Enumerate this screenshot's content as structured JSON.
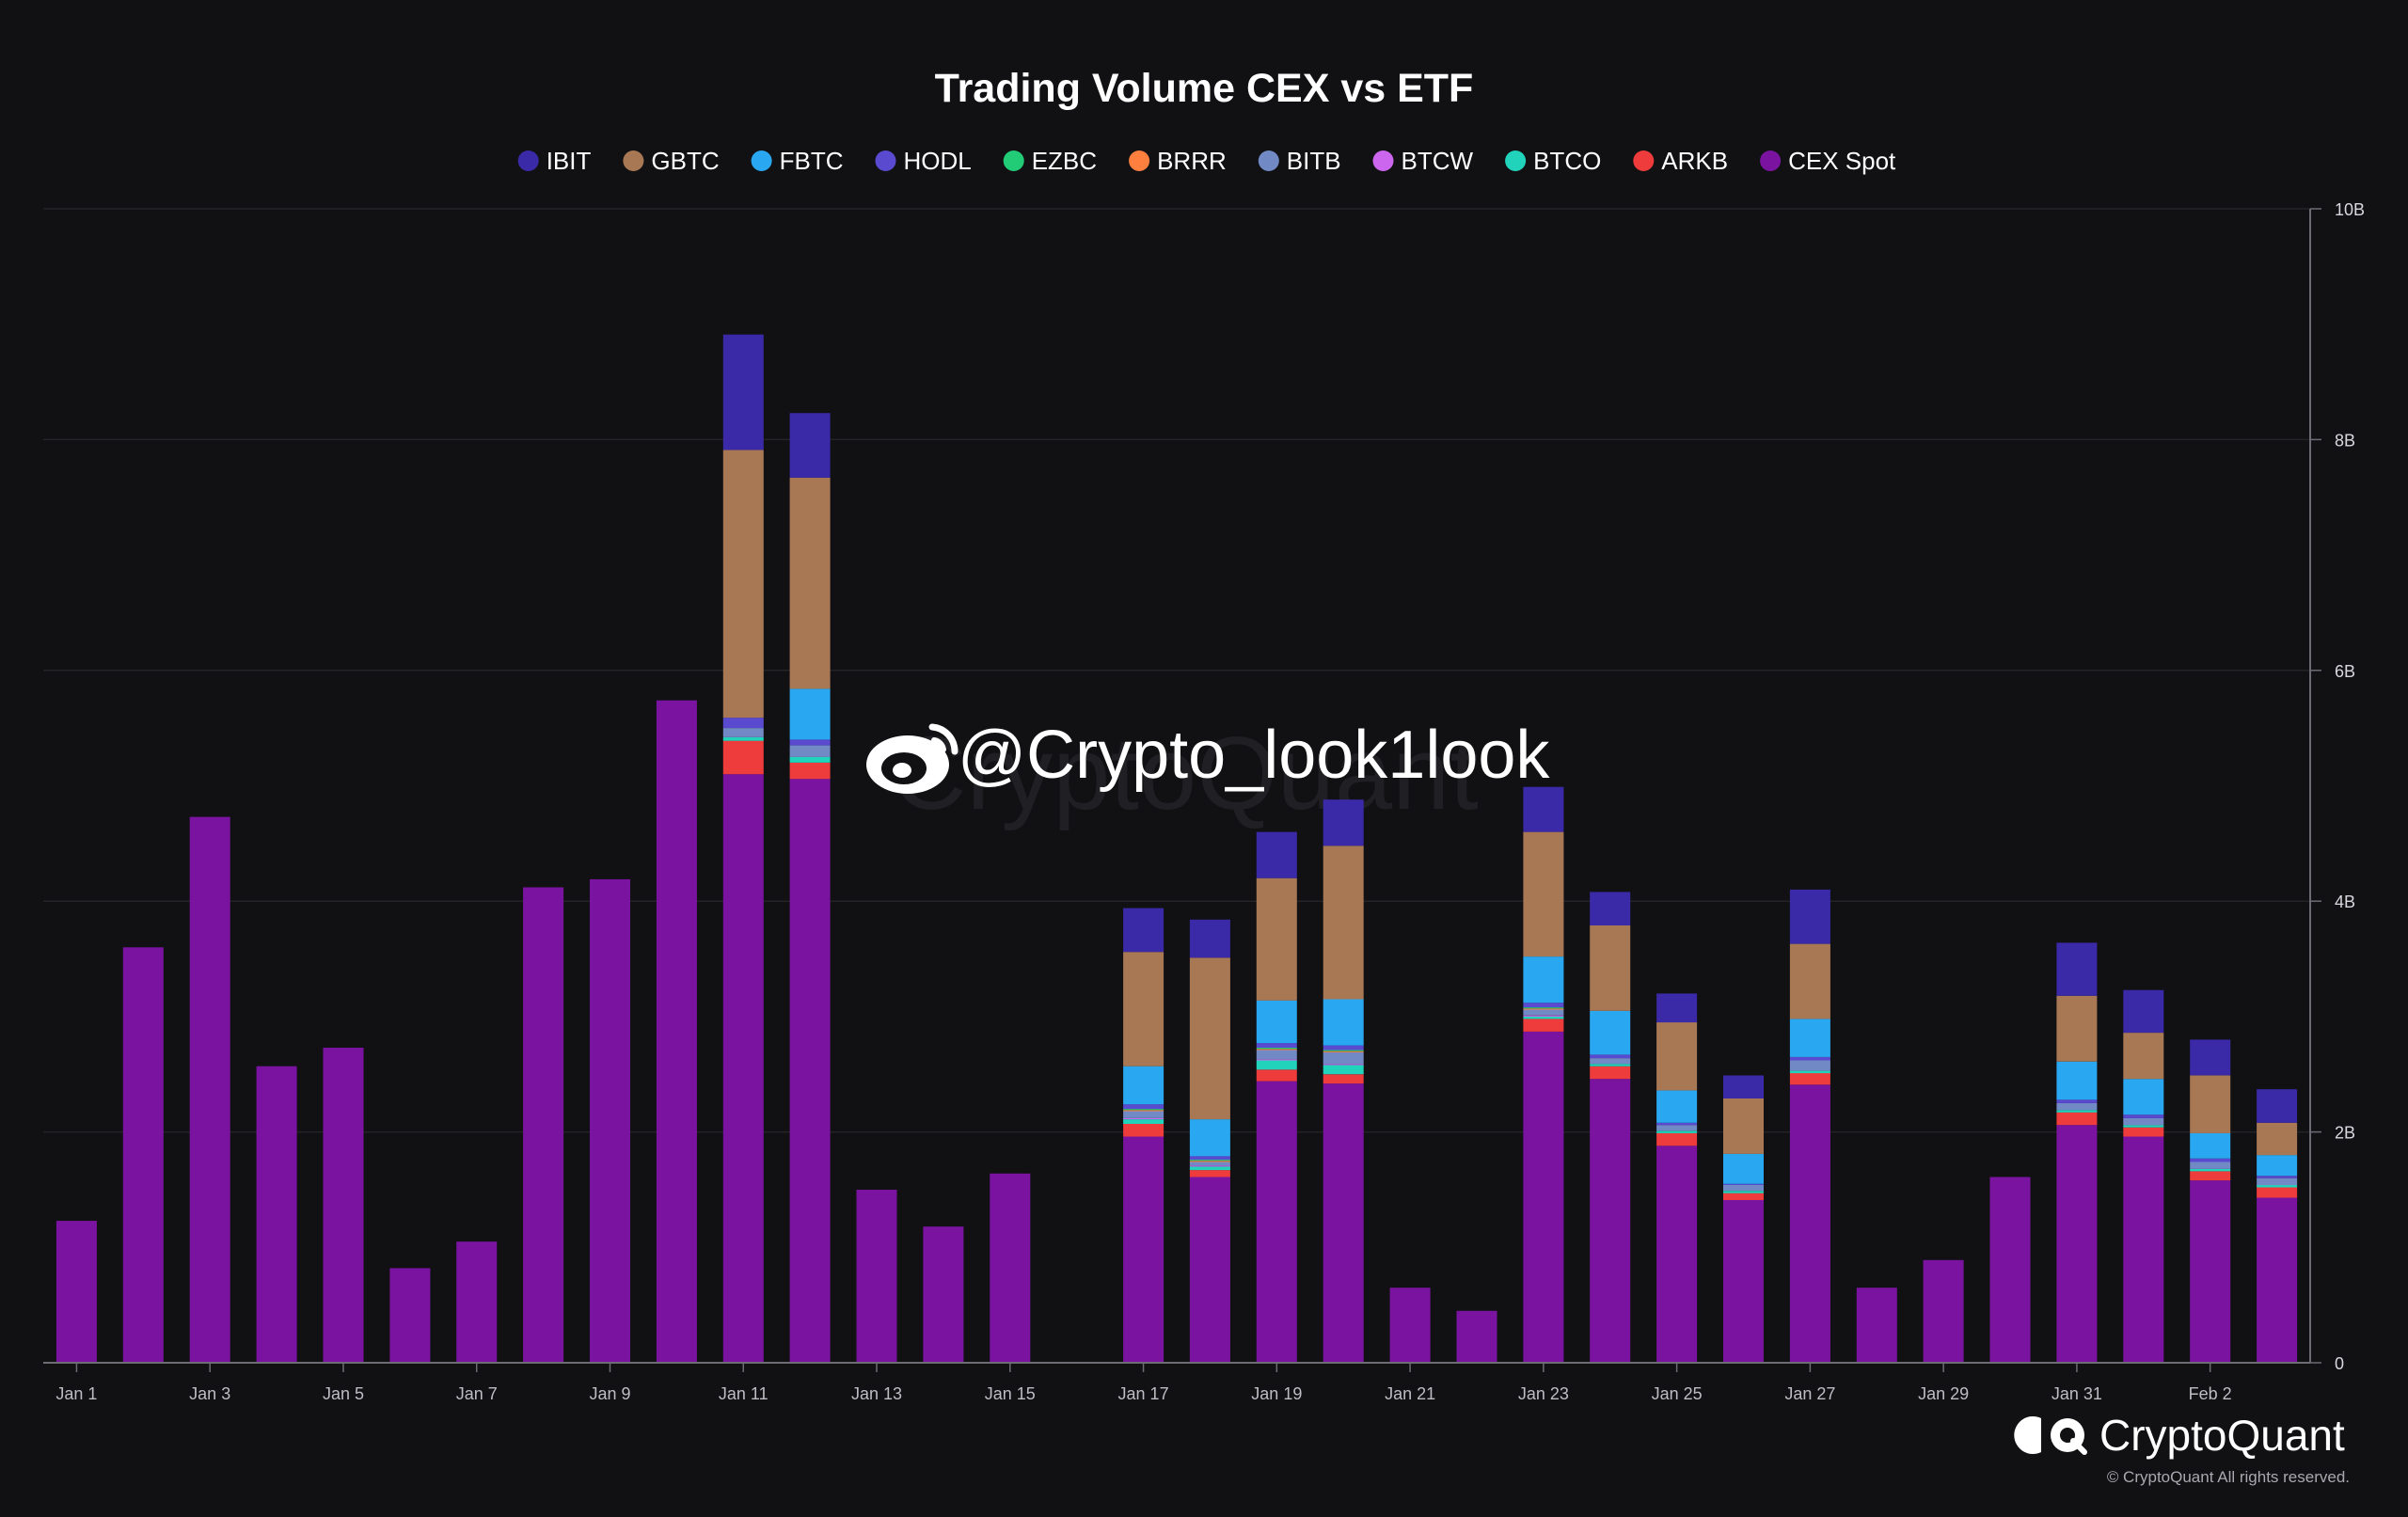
{
  "chart_data": {
    "type": "bar",
    "stacked": true,
    "title": "Trading Volume CEX vs ETF",
    "legend_position": "top-center",
    "grid": true,
    "y_axis_side": "right",
    "ylim": [
      0,
      10000000000
    ],
    "ytick_values": [
      0,
      2000000000,
      4000000000,
      6000000000,
      8000000000,
      10000000000
    ],
    "ytick_labels": [
      "0",
      "2B",
      "4B",
      "6B",
      "8B",
      "10B"
    ],
    "categories": [
      "Jan 1",
      "Jan 2",
      "Jan 3",
      "Jan 4",
      "Jan 5",
      "Jan 6",
      "Jan 7",
      "Jan 8",
      "Jan 9",
      "Jan 10",
      "Jan 11",
      "Jan 12",
      "Jan 13",
      "Jan 14",
      "Jan 15",
      "Jan 16",
      "Jan 17",
      "Jan 18",
      "Jan 19",
      "Jan 20",
      "Jan 21",
      "Jan 22",
      "Jan 23",
      "Jan 24",
      "Jan 25",
      "Jan 26",
      "Jan 27",
      "Jan 28",
      "Jan 29",
      "Jan 30",
      "Jan 31",
      "Feb 1",
      "Feb 2",
      "Feb 3"
    ],
    "xtick_labels": [
      "Jan 1",
      "Jan 3",
      "Jan 5",
      "Jan 7",
      "Jan 9",
      "Jan 11",
      "Jan 13",
      "Jan 15",
      "Jan 17",
      "Jan 19",
      "Jan 21",
      "Jan 23",
      "Jan 25",
      "Jan 27",
      "Jan 29",
      "Jan 31",
      "Feb 2"
    ],
    "stack_order": [
      "CEX Spot",
      "ARKB",
      "BTCO",
      "BTCW",
      "BITB",
      "BRRR",
      "EZBC",
      "HODL",
      "FBTC",
      "GBTC",
      "IBIT"
    ],
    "series": [
      {
        "name": "IBIT",
        "color": "#3a2aa8",
        "values": [
          0,
          0,
          0,
          0,
          0,
          0,
          0,
          0,
          0,
          0,
          1000000000,
          560000000,
          0,
          0,
          0,
          0,
          380000000,
          330000000,
          400000000,
          400000000,
          0,
          0,
          390000000,
          290000000,
          250000000,
          200000000,
          470000000,
          0,
          0,
          0,
          460000000,
          370000000,
          310000000,
          290000000
        ]
      },
      {
        "name": "GBTC",
        "color": "#a87855",
        "values": [
          0,
          0,
          0,
          0,
          0,
          0,
          0,
          0,
          0,
          0,
          2320000000,
          1830000000,
          0,
          0,
          0,
          0,
          990000000,
          1400000000,
          1060000000,
          1330000000,
          0,
          0,
          1080000000,
          740000000,
          590000000,
          480000000,
          650000000,
          0,
          0,
          0,
          570000000,
          400000000,
          500000000,
          280000000
        ]
      },
      {
        "name": "FBTC",
        "color": "#29a7f0",
        "values": [
          0,
          0,
          0,
          0,
          0,
          0,
          0,
          0,
          0,
          0,
          0,
          440000000,
          0,
          0,
          0,
          0,
          330000000,
          320000000,
          370000000,
          400000000,
          0,
          0,
          400000000,
          380000000,
          280000000,
          260000000,
          330000000,
          0,
          0,
          0,
          330000000,
          310000000,
          220000000,
          180000000
        ]
      },
      {
        "name": "HODL",
        "color": "#5a4ad0",
        "values": [
          0,
          0,
          0,
          0,
          0,
          0,
          0,
          0,
          0,
          0,
          90000000,
          50000000,
          0,
          0,
          0,
          0,
          40000000,
          30000000,
          40000000,
          40000000,
          0,
          0,
          40000000,
          30000000,
          20000000,
          10000000,
          30000000,
          0,
          0,
          0,
          30000000,
          30000000,
          30000000,
          20000000
        ]
      },
      {
        "name": "EZBC",
        "color": "#22cc77",
        "values": [
          0,
          0,
          0,
          0,
          0,
          0,
          0,
          0,
          0,
          0,
          0,
          0,
          0,
          0,
          0,
          0,
          10000000,
          10000000,
          10000000,
          10000000,
          0,
          0,
          10000000,
          0,
          0,
          0,
          0,
          0,
          0,
          0,
          0,
          0,
          0,
          0
        ]
      },
      {
        "name": "BRRR",
        "color": "#ff7f3f",
        "values": [
          0,
          0,
          0,
          0,
          0,
          0,
          0,
          0,
          0,
          0,
          0,
          0,
          0,
          0,
          0,
          0,
          10000000,
          10000000,
          10000000,
          10000000,
          0,
          0,
          10000000,
          0,
          0,
          0,
          0,
          0,
          0,
          0,
          0,
          0,
          0,
          0
        ]
      },
      {
        "name": "BITB",
        "color": "#7189c4",
        "values": [
          0,
          0,
          0,
          0,
          0,
          0,
          0,
          0,
          0,
          0,
          80000000,
          100000000,
          0,
          0,
          0,
          0,
          60000000,
          30000000,
          80000000,
          100000000,
          0,
          0,
          50000000,
          50000000,
          50000000,
          50000000,
          90000000,
          0,
          0,
          0,
          60000000,
          60000000,
          60000000,
          60000000
        ]
      },
      {
        "name": "BTCW",
        "color": "#cc66ee",
        "values": [
          0,
          0,
          0,
          0,
          0,
          0,
          0,
          0,
          0,
          0,
          0,
          0,
          0,
          0,
          0,
          0,
          10000000,
          10000000,
          10000000,
          10000000,
          0,
          0,
          10000000,
          0,
          0,
          0,
          0,
          0,
          0,
          0,
          0,
          0,
          0,
          0
        ]
      },
      {
        "name": "BTCO",
        "color": "#22d3bb",
        "values": [
          0,
          0,
          0,
          0,
          0,
          0,
          0,
          0,
          0,
          0,
          30000000,
          50000000,
          0,
          0,
          0,
          0,
          40000000,
          30000000,
          80000000,
          80000000,
          0,
          0,
          20000000,
          20000000,
          20000000,
          20000000,
          20000000,
          0,
          0,
          0,
          20000000,
          20000000,
          20000000,
          20000000
        ]
      },
      {
        "name": "ARKB",
        "color": "#ee3b3b",
        "values": [
          0,
          0,
          0,
          0,
          0,
          0,
          0,
          0,
          0,
          0,
          290000000,
          140000000,
          0,
          0,
          0,
          0,
          110000000,
          60000000,
          100000000,
          80000000,
          0,
          0,
          110000000,
          110000000,
          110000000,
          60000000,
          100000000,
          0,
          0,
          0,
          110000000,
          80000000,
          80000000,
          90000000
        ]
      },
      {
        "name": "CEX Spot",
        "color": "#7a14a0",
        "values": [
          1230000000,
          3600000000,
          4730000000,
          2570000000,
          2730000000,
          820000000,
          1050000000,
          4120000000,
          4190000000,
          5740000000,
          5100000000,
          5060000000,
          1500000000,
          1180000000,
          1640000000,
          0,
          1960000000,
          1610000000,
          2440000000,
          2420000000,
          650000000,
          450000000,
          2870000000,
          2460000000,
          1880000000,
          1410000000,
          2410000000,
          650000000,
          890000000,
          1610000000,
          2060000000,
          1960000000,
          1580000000,
          1430000000
        ]
      }
    ]
  },
  "watermark": {
    "text": "@Crypto_look1look",
    "icon": "weibo-icon"
  },
  "background_logo_text": "CryptoQuant",
  "brand": {
    "name": "CryptoQuant",
    "icon": "cryptoquant-logo-icon",
    "copyright": "© CryptoQuant All rights reserved."
  }
}
